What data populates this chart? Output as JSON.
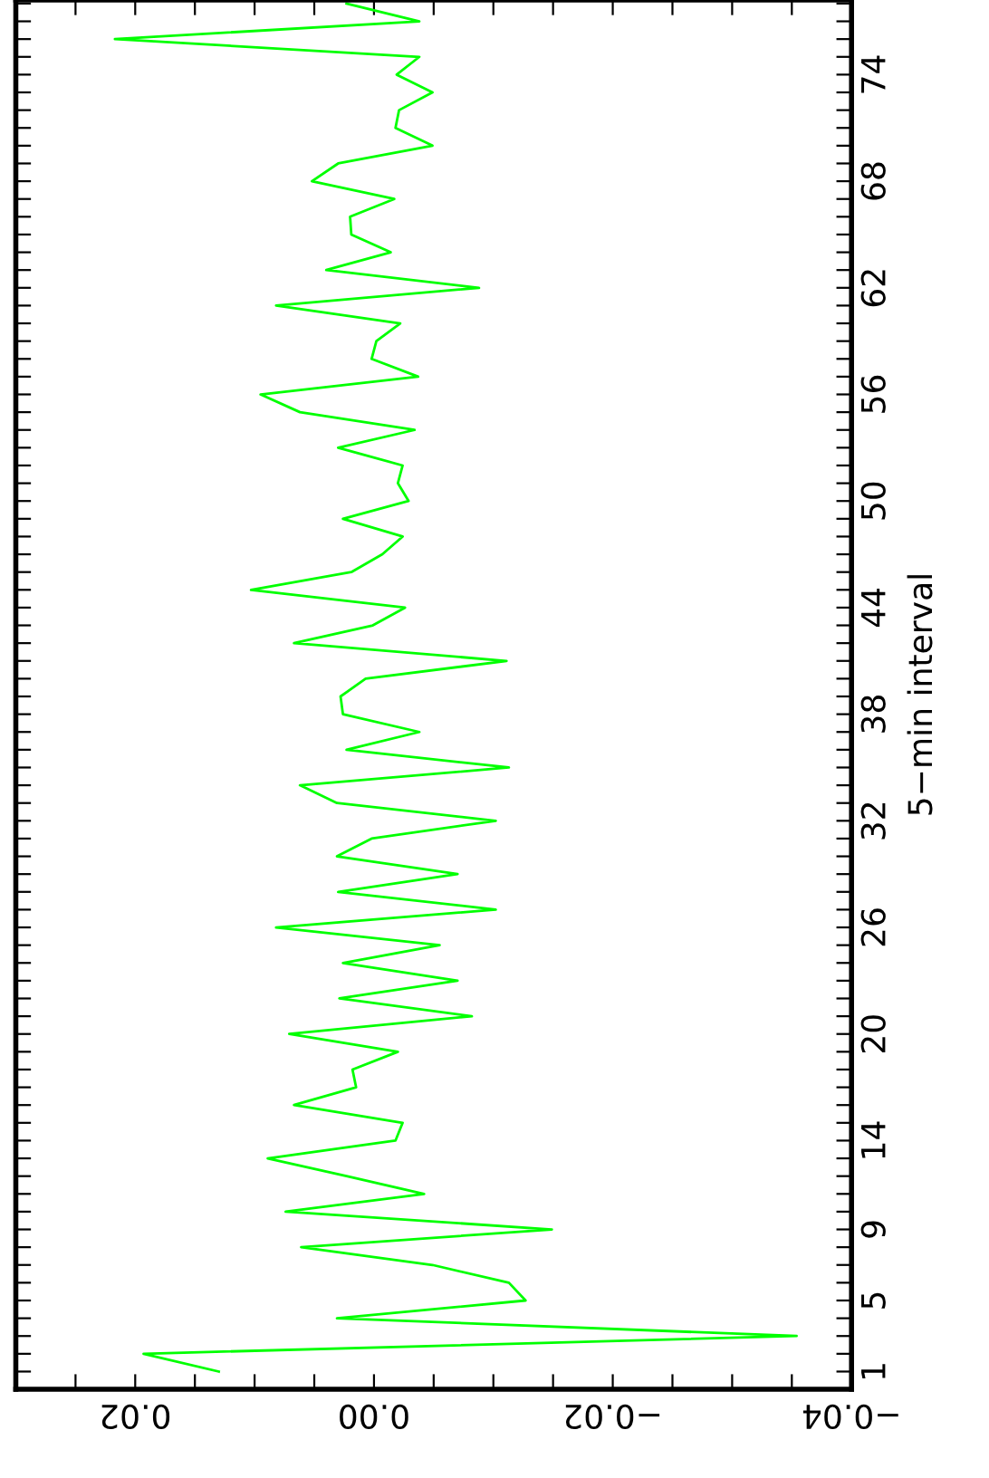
{
  "chart_data": {
    "type": "line",
    "ylabel": "5−min interval",
    "series": [
      {
        "color": "#00ff00",
        "x": [
          0.013,
          0.0193,
          -0.0354,
          0.0031,
          -0.0127,
          -0.0113,
          -0.0049,
          0.0061,
          -0.0149,
          0.0074,
          -0.0042,
          0.0023,
          0.0089,
          -0.0018,
          -0.0024,
          0.0067,
          0.0015,
          0.0018,
          -0.002,
          0.0071,
          -0.0082,
          0.0029,
          -0.007,
          0.0026,
          -0.0055,
          0.0082,
          -0.0102,
          0.003,
          -0.007,
          0.0031,
          0.0002,
          -0.0102,
          0.0031,
          0.0062,
          -0.0113,
          0.0023,
          -0.0038,
          0.0026,
          0.0028,
          0.0007,
          -0.0111,
          0.0067,
          0.0001,
          -0.0026,
          0.0103,
          0.0019,
          -0.0007,
          -0.0024,
          0.0026,
          -0.0029,
          -0.002,
          -0.0024,
          0.003,
          -0.0034,
          0.0062,
          0.0095,
          -0.0037,
          0.0002,
          -0.0002,
          -0.0022,
          0.0082,
          -0.0088,
          0.004,
          -0.0014,
          0.0019,
          0.002,
          -0.0017,
          0.0052,
          0.003,
          -0.0049,
          -0.0018,
          -0.0021,
          -0.0049,
          -0.0019,
          -0.0038,
          0.0217,
          -0.0038,
          0.0023
        ],
        "values": [
          1,
          2,
          3,
          4,
          5,
          6,
          7,
          8,
          9,
          10,
          11,
          12,
          13,
          14,
          15,
          16,
          17,
          18,
          19,
          20,
          21,
          22,
          23,
          24,
          25,
          26,
          27,
          28,
          29,
          30,
          31,
          32,
          33,
          34,
          35,
          36,
          37,
          38,
          39,
          40,
          41,
          42,
          43,
          44,
          45,
          46,
          47,
          48,
          49,
          50,
          51,
          52,
          53,
          54,
          55,
          56,
          57,
          58,
          59,
          60,
          61,
          62,
          63,
          64,
          65,
          66,
          67,
          68,
          69,
          70,
          71,
          72,
          73,
          74,
          75,
          76,
          77,
          78
        ]
      }
    ],
    "ylim": [
      0,
      78.2
    ],
    "yticks": [
      1,
      {
        "value": 2,
        "label": null
      },
      {
        "value": 3,
        "label": null
      },
      {
        "value": 4,
        "label": null
      },
      5,
      {
        "value": 6,
        "label": null
      },
      {
        "value": 7,
        "label": null
      },
      {
        "value": 8,
        "label": null
      },
      9,
      {
        "value": 10,
        "label": null
      },
      {
        "value": 11,
        "label": null
      },
      {
        "value": 12,
        "label": null
      },
      {
        "value": 13,
        "label": null
      },
      14,
      {
        "value": 15,
        "label": null
      },
      {
        "value": 16,
        "label": null
      },
      {
        "value": 17,
        "label": null
      },
      {
        "value": 18,
        "label": null
      },
      {
        "value": 19,
        "label": null
      },
      20,
      {
        "value": 21,
        "label": null
      },
      {
        "value": 22,
        "label": null
      },
      {
        "value": 23,
        "label": null
      },
      {
        "value": 24,
        "label": null
      },
      {
        "value": 25,
        "label": null
      },
      26,
      {
        "value": 27,
        "label": null
      },
      {
        "value": 28,
        "label": null
      },
      {
        "value": 29,
        "label": null
      },
      {
        "value": 30,
        "label": null
      },
      {
        "value": 31,
        "label": null
      },
      32,
      {
        "value": 33,
        "label": null
      },
      {
        "value": 34,
        "label": null
      },
      {
        "value": 35,
        "label": null
      },
      {
        "value": 36,
        "label": null
      },
      {
        "value": 37,
        "label": null
      },
      38,
      {
        "value": 39,
        "label": null
      },
      {
        "value": 40,
        "label": null
      },
      {
        "value": 41,
        "label": null
      },
      {
        "value": 42,
        "label": null
      },
      {
        "value": 43,
        "label": null
      },
      44,
      {
        "value": 45,
        "label": null
      },
      {
        "value": 46,
        "label": null
      },
      {
        "value": 47,
        "label": null
      },
      {
        "value": 48,
        "label": null
      },
      {
        "value": 49,
        "label": null
      },
      50,
      {
        "value": 51,
        "label": null
      },
      {
        "value": 52,
        "label": null
      },
      {
        "value": 53,
        "label": null
      },
      {
        "value": 54,
        "label": null
      },
      {
        "value": 55,
        "label": null
      },
      56,
      {
        "value": 57,
        "label": null
      },
      {
        "value": 58,
        "label": null
      },
      {
        "value": 59,
        "label": null
      },
      {
        "value": 60,
        "label": null
      },
      {
        "value": 61,
        "label": null
      },
      62,
      {
        "value": 63,
        "label": null
      },
      {
        "value": 64,
        "label": null
      },
      {
        "value": 65,
        "label": null
      },
      {
        "value": 66,
        "label": null
      },
      {
        "value": 67,
        "label": null
      },
      68,
      {
        "value": 69,
        "label": null
      },
      {
        "value": 70,
        "label": null
      },
      {
        "value": 71,
        "label": null
      },
      {
        "value": 72,
        "label": null
      },
      {
        "value": 73,
        "label": null
      },
      74,
      {
        "value": 75,
        "label": null
      },
      {
        "value": 76,
        "label": null
      },
      {
        "value": 77,
        "label": null
      },
      {
        "value": 78,
        "label": null
      }
    ],
    "xlim": [
      0.03,
      -0.04
    ],
    "xticks": [
      {
        "value": 0.025,
        "label": null
      },
      {
        "value": 0.02,
        "label": "0.02"
      },
      {
        "value": 0.015,
        "label": null
      },
      {
        "value": 0.01,
        "label": null
      },
      {
        "value": 0.005,
        "label": null
      },
      {
        "value": 0,
        "label": "0.00"
      },
      {
        "value": -0.005,
        "label": null
      },
      {
        "value": -0.01,
        "label": null
      },
      {
        "value": -0.015,
        "label": null
      },
      {
        "value": -0.02,
        "label": "−0.02"
      },
      {
        "value": -0.025,
        "label": null
      },
      {
        "value": -0.03,
        "label": null
      },
      {
        "value": -0.035,
        "label": null
      },
      {
        "value": -0.04,
        "label": "−0.04"
      }
    ],
    "marker": "none",
    "line_style": "solid"
  }
}
